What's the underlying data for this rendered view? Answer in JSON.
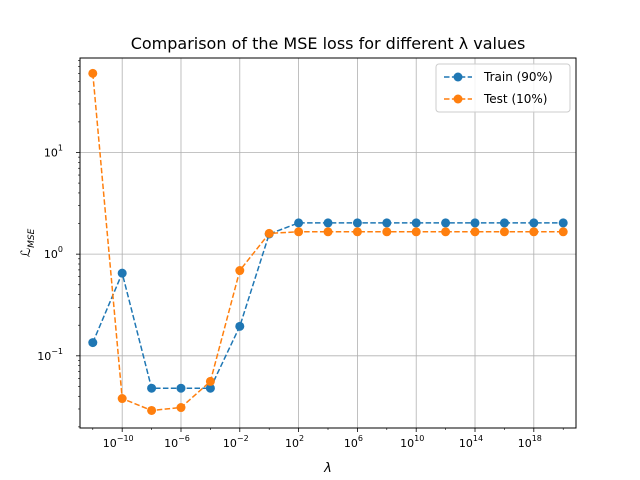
{
  "chart_data": {
    "type": "line",
    "title": "Comparison of the MSE loss for different λ values",
    "xlabel": "λ",
    "ylabel": "ℒ_MSE",
    "x_scale": "log",
    "y_scale": "log",
    "x": [
      1e-12,
      1e-11,
      1e-10,
      1e-09,
      1e-08,
      1e-07,
      1e-06,
      1e-05,
      0.0001,
      0.001,
      0.01,
      0.1,
      1,
      10,
      100,
      1000,
      10000.0,
      100000.0,
      1000000.0,
      10000000.0,
      100000000.0,
      1000000000.0,
      10000000000.0,
      100000000000.0,
      1000000000000.0,
      10000000000000.0,
      100000000000000.0,
      1000000000000000.0,
      1e+16,
      1e+17,
      1e+18,
      1e+19,
      1e+20
    ],
    "x_shown_points": [
      1e-12,
      1e-10,
      1e-08,
      1e-06,
      0.0001,
      0.01,
      1,
      100,
      10000.0,
      1000000.0,
      100000000.0,
      10000000000.0,
      1000000000000.0,
      100000000000000.0,
      1e+16,
      1e+18,
      1e+20
    ],
    "series": [
      {
        "name": "Train (90%)",
        "color": "#1f77b4",
        "x": [
          1e-12,
          1e-10,
          1e-08,
          1e-06,
          0.0001,
          0.01,
          1,
          100,
          10000.0,
          1000000.0,
          100000000.0,
          10000000000.0,
          1000000000000.0,
          100000000000000.0,
          1e+16,
          1e+18,
          1e+20
        ],
        "values": [
          0.135,
          0.65,
          0.048,
          0.048,
          0.048,
          0.195,
          1.58,
          2.03,
          2.03,
          2.03,
          2.03,
          2.03,
          2.03,
          2.03,
          2.03,
          2.03,
          2.03
        ]
      },
      {
        "name": "Test (10%)",
        "color": "#ff7f0e",
        "x": [
          1e-12,
          1e-10,
          1e-08,
          1e-06,
          0.0001,
          0.01,
          1,
          100,
          10000.0,
          1000000.0,
          100000000.0,
          10000000000.0,
          1000000000000.0,
          100000000000000.0,
          1e+16,
          1e+18,
          1e+20
        ],
        "values": [
          60,
          0.038,
          0.029,
          0.031,
          0.056,
          0.69,
          1.6,
          1.66,
          1.66,
          1.66,
          1.66,
          1.66,
          1.66,
          1.66,
          1.66,
          1.66,
          1.66
        ]
      }
    ],
    "x_ticks": [
      {
        "value": 1e-10,
        "base": "10",
        "exp": "−10"
      },
      {
        "value": 1e-06,
        "base": "10",
        "exp": "−6"
      },
      {
        "value": 0.01,
        "base": "10",
        "exp": "−2"
      },
      {
        "value": 100,
        "base": "10",
        "exp": "2"
      },
      {
        "value": 1000000.0,
        "base": "10",
        "exp": "6"
      },
      {
        "value": 10000000000.0,
        "base": "10",
        "exp": "10"
      },
      {
        "value": 100000000000000.0,
        "base": "10",
        "exp": "14"
      },
      {
        "value": 1e+18,
        "base": "10",
        "exp": "18"
      }
    ],
    "y_ticks": [
      {
        "value": 0.1,
        "label": "10",
        "exp": "−1"
      },
      {
        "value": 1,
        "label": "10",
        "exp": "0"
      },
      {
        "value": 10,
        "label": "10",
        "exp": "1"
      }
    ],
    "xlim": [
      1e-12,
      1e+20
    ],
    "ylim": [
      0.02,
      85
    ],
    "grid": true,
    "legend": "top-right"
  }
}
